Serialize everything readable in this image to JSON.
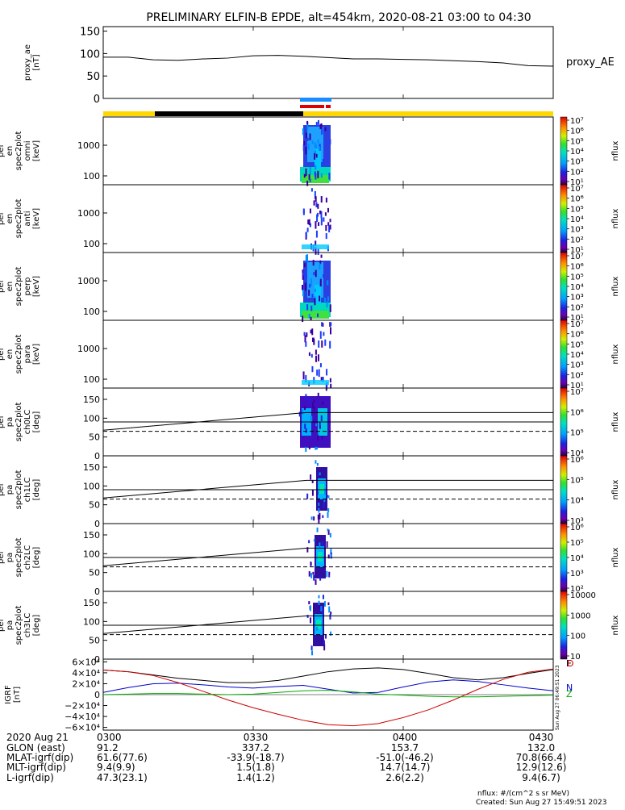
{
  "title": "PRELIMINARY ELFIN-B EPDE, alt=454km, 2020-08-21 03:00 to 04:30",
  "chart_data": [
    {
      "type": "line",
      "id": "proxy_ae",
      "ylabel_lines": [
        "proxy_ae",
        "[nT]"
      ],
      "legend": "proxy_AE",
      "ylim": [
        0,
        160
      ],
      "yticks": [
        "150",
        "100",
        "50",
        "0"
      ],
      "ytick_values": [
        150,
        100,
        50,
        0
      ],
      "x": [
        0,
        5,
        10,
        15,
        20,
        25,
        30,
        35,
        40,
        45,
        50,
        55,
        60,
        65,
        70,
        75,
        80,
        85,
        90
      ],
      "values": [
        92,
        92,
        86,
        85,
        88,
        90,
        95,
        96,
        94,
        91,
        88,
        88,
        87,
        86,
        84,
        82,
        79,
        73,
        72
      ]
    },
    {
      "type": "heatmap",
      "id": "en_spec2plot_omni",
      "ylabel_lines": [
        "elb",
        "pef",
        "en",
        "spec2plot",
        "omni",
        "[keV]"
      ],
      "yticks": [
        "1000",
        "100"
      ],
      "colorbar_ticks": [
        "10⁷",
        "10⁶",
        "10⁵",
        "10⁴",
        "10³",
        "10²",
        "10¹"
      ],
      "colorbar_label": "nflux"
    },
    {
      "type": "heatmap",
      "id": "en_spec2plot_anti",
      "ylabel_lines": [
        "elb",
        "pef",
        "en",
        "spec2plot",
        "anti",
        "[keV]"
      ],
      "yticks": [
        "1000",
        "100"
      ],
      "colorbar_ticks": [
        "10⁷",
        "10⁶",
        "10⁵",
        "10⁴",
        "10³",
        "10²",
        "10¹"
      ],
      "colorbar_label": "nflux"
    },
    {
      "type": "heatmap",
      "id": "en_spec2plot_perp",
      "ylabel_lines": [
        "elb",
        "pef",
        "en",
        "spec2plot",
        "perp",
        "[keV]"
      ],
      "yticks": [
        "1000",
        "100"
      ],
      "colorbar_ticks": [
        "10⁷",
        "10⁶",
        "10⁵",
        "10⁴",
        "10³",
        "10²",
        "10¹"
      ],
      "colorbar_label": "nflux"
    },
    {
      "type": "heatmap",
      "id": "en_spec2plot_para",
      "ylabel_lines": [
        "elb",
        "pef",
        "en",
        "spec2plot",
        "para",
        "[keV]"
      ],
      "yticks": [
        "1000",
        "100"
      ],
      "colorbar_ticks": [
        "10⁷",
        "10⁶",
        "10⁵",
        "10⁴",
        "10³",
        "10²",
        "10¹"
      ],
      "colorbar_label": "nflux"
    },
    {
      "type": "heatmap",
      "id": "pa_spec2plot_ch0LC",
      "ylabel_lines": [
        "elb",
        "pef",
        "pa",
        "spec2plot",
        "ch0LC",
        "[deg]"
      ],
      "yticks": [
        "150",
        "100",
        "50",
        "0"
      ],
      "colorbar_ticks": [
        "10⁷",
        "10⁶",
        "10⁵",
        "10⁴"
      ],
      "colorbar_label": "nflux"
    },
    {
      "type": "heatmap",
      "id": "pa_spec2plot_ch1LC",
      "ylabel_lines": [
        "elb",
        "pef",
        "pa",
        "spec2plot",
        "ch1LC",
        "[deg]"
      ],
      "yticks": [
        "150",
        "100",
        "50",
        "0"
      ],
      "colorbar_ticks": [
        "10⁶",
        "10⁵",
        "10⁴",
        "10³"
      ],
      "colorbar_label": "nflux"
    },
    {
      "type": "heatmap",
      "id": "pa_spec2plot_ch2LC",
      "ylabel_lines": [
        "elb",
        "pef",
        "pa",
        "spec2plot",
        "ch2LC",
        "[deg]"
      ],
      "yticks": [
        "150",
        "100",
        "50",
        "0"
      ],
      "colorbar_ticks": [
        "10⁶",
        "10⁵",
        "10⁴",
        "10³",
        "10²"
      ],
      "colorbar_label": "nflux"
    },
    {
      "type": "heatmap",
      "id": "pa_spec2plot_ch3LC",
      "ylabel_lines": [
        "elb",
        "pef",
        "pa",
        "spec2plot",
        "ch3LC",
        "[deg]"
      ],
      "yticks": [
        "150",
        "100",
        "50",
        "0"
      ],
      "colorbar_ticks": [
        "10000",
        "1000",
        "100",
        "10"
      ],
      "colorbar_label": "nflux"
    },
    {
      "type": "line",
      "id": "igrf",
      "ylabel_lines": [
        "IGRF",
        "[nT]"
      ],
      "ylim": [
        -65000,
        65000
      ],
      "yticks": [
        "6×10⁴",
        "4×10⁴",
        "2×10⁴",
        "0",
        "−2×10⁴",
        "−4×10⁴",
        "−6×10⁴"
      ],
      "ytick_values": [
        60000,
        40000,
        20000,
        0,
        -20000,
        -40000,
        -60000
      ],
      "series": [
        {
          "name": "E",
          "color": "#000000",
          "x": [
            0,
            5,
            10,
            15,
            20,
            25,
            30,
            35,
            40,
            45,
            50,
            55,
            60,
            65,
            70,
            75,
            80,
            85,
            90
          ],
          "values": [
            45000,
            42000,
            36000,
            30000,
            26000,
            22000,
            22000,
            26000,
            34000,
            42000,
            47000,
            49000,
            46000,
            39000,
            31000,
            27000,
            31000,
            39000,
            46000
          ]
        },
        {
          "name": "N",
          "color": "#0000cc",
          "x": [
            0,
            5,
            10,
            15,
            20,
            25,
            30,
            35,
            40,
            45,
            50,
            55,
            60,
            65,
            70,
            75,
            80,
            85,
            90
          ],
          "values": [
            4000,
            13000,
            20000,
            21000,
            18000,
            14000,
            12000,
            15000,
            17000,
            10000,
            3000,
            4000,
            14000,
            23000,
            27000,
            24000,
            18000,
            12000,
            7000
          ]
        },
        {
          "name": "D",
          "color": "#cc0000",
          "x": [
            0,
            5,
            10,
            15,
            20,
            25,
            30,
            35,
            40,
            45,
            50,
            55,
            60,
            65,
            70,
            75,
            80,
            85,
            90
          ],
          "values": [
            45000,
            42000,
            35000,
            22000,
            6000,
            -10000,
            -24000,
            -36000,
            -47000,
            -55000,
            -57000,
            -53000,
            -42000,
            -28000,
            -10000,
            10000,
            28000,
            41000,
            47000
          ]
        },
        {
          "name": "Z",
          "color": "#00aa00",
          "x": [
            0,
            5,
            10,
            15,
            20,
            25,
            30,
            35,
            40,
            45,
            50,
            55,
            60,
            65,
            70,
            75,
            80,
            85,
            90
          ],
          "values": [
            0,
            1000,
            2000,
            2000,
            1000,
            0,
            1000,
            4000,
            7000,
            8000,
            5000,
            1000,
            -1000,
            -3000,
            -4000,
            -4000,
            -3000,
            -2000,
            -1000
          ]
        }
      ]
    }
  ],
  "time_axis": {
    "ticks": [
      "0300",
      "0330",
      "0400",
      "0430"
    ],
    "tick_minutes": [
      0,
      30,
      60,
      90
    ]
  },
  "orbit_table": {
    "rows": [
      {
        "label": "2020 Aug 21",
        "values": [
          "0300",
          "0330",
          "0400",
          "0430"
        ]
      },
      {
        "label": "GLON (east)",
        "values": [
          "91.2",
          "337.2",
          "153.7",
          "132.0"
        ]
      },
      {
        "label": "MLAT-igrf(dip)",
        "values": [
          "61.6(77.6)",
          "-33.9(-18.7)",
          "-51.0(-46.2)",
          "70.8(66.4)"
        ]
      },
      {
        "label": "MLT-igrf(dip)",
        "values": [
          "9.4(9.9)",
          "1.5(1.8)",
          "14.7(14.7)",
          "12.9(12.6)"
        ]
      },
      {
        "label": "L-igrf(dip)",
        "values": [
          "47.3(23.1)",
          "1.4(1.2)",
          "2.6(2.2)",
          "9.4(6.7)"
        ]
      }
    ]
  },
  "footer": {
    "units": "nflux: #/(cm^2 s sr MeV)",
    "created": "Created: Sun Aug 27 15:49:51 2023",
    "side_stamp": "Sun Aug 27 06:49:51 2023"
  }
}
